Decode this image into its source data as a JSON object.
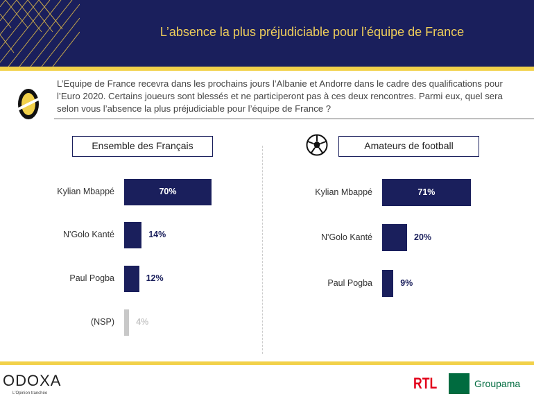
{
  "header": {
    "title": "L’absence la plus préjudiciable pour l’équipe de France"
  },
  "question": "L’Equipe de France recevra dans les prochains jours l’Albanie et Andorre dans le cadre des qualifications pour l’Euro 2020. Certains joueurs sont blessés et ne participeront pas à ces deux rencontres. Parmi eux, quel sera selon vous l’absence la plus préjudiciable pour l’équipe de France ?",
  "footer": {
    "brand": "ODOXA",
    "tagline": "L'Opinion tranchée",
    "partner1": "RTL",
    "partner2": "Groupama"
  },
  "colors": {
    "navy": "#1a1f5c",
    "gold": "#f2d14a",
    "nsp": "#c8c8c8"
  },
  "chart_data": [
    {
      "type": "bar",
      "orientation": "horizontal",
      "title": "Ensemble des Français",
      "categories": [
        "Kylian Mbappé",
        "N'Golo Kanté",
        "Paul Pogba",
        "(NSP)"
      ],
      "values": [
        70,
        14,
        12,
        4
      ],
      "labels": [
        "70%",
        "14%",
        "12%",
        "4%"
      ]
    },
    {
      "type": "bar",
      "orientation": "horizontal",
      "title": "Amateurs de football",
      "icon": "soccer-ball-icon",
      "categories": [
        "Kylian Mbappé",
        "N'Golo Kanté",
        "Paul Pogba"
      ],
      "values": [
        71,
        20,
        9
      ],
      "labels": [
        "71%",
        "20%",
        "9%"
      ]
    }
  ]
}
